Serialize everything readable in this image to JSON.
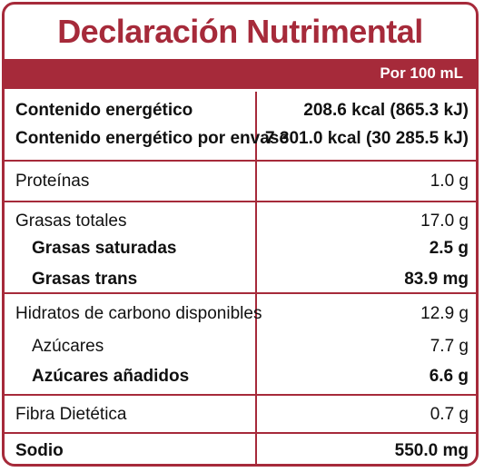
{
  "title": "Declaración Nutrimental",
  "per_label": "Por 100 mL",
  "colors": {
    "accent": "#a62a3a",
    "text": "#111111",
    "background": "#ffffff"
  },
  "rows": [
    {
      "label": "Contenido energético",
      "value": "208.6 kcal (865.3 kJ)",
      "bold": true
    },
    {
      "label": "Contenido energético por envase",
      "value": "7 301.0 kcal (30 285.5 kJ)",
      "bold": true
    },
    {
      "label": "Proteínas",
      "value": "1.0 g",
      "bold": false
    },
    {
      "label": "Grasas totales",
      "value": "17.0 g",
      "bold": false
    },
    {
      "label": "Grasas saturadas",
      "value": "2.5 g",
      "bold": true
    },
    {
      "label": "Grasas trans",
      "value": "83.9 mg",
      "bold": true
    },
    {
      "label": "Hidratos de carbono disponibles",
      "value": "12.9 g",
      "bold": false
    },
    {
      "label": "Azúcares",
      "value": "7.7 g",
      "bold": false
    },
    {
      "label": "Azúcares añadidos",
      "value": "6.6 g",
      "bold": true
    },
    {
      "label": "Fibra Dietética",
      "value": "0.7 g",
      "bold": false
    },
    {
      "label": "Sodio",
      "value": "550.0 mg",
      "bold": true
    }
  ]
}
